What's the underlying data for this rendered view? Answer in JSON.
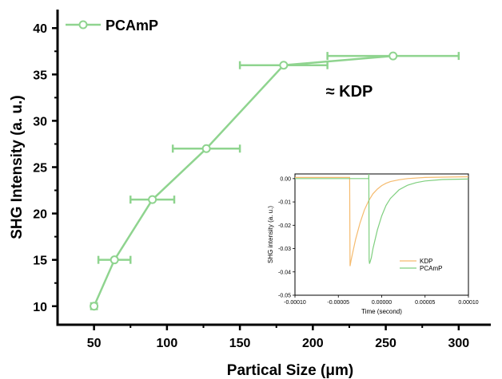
{
  "chart_data": [
    {
      "type": "line",
      "xlabel": "Partical Size (μm)",
      "ylabel": "SHG Intensity (a. u.)",
      "xlim": [
        25,
        322
      ],
      "ylim": [
        8,
        42
      ],
      "xticks": [
        50,
        100,
        150,
        200,
        250,
        300
      ],
      "yticks": [
        10,
        15,
        20,
        25,
        30,
        35,
        40
      ],
      "legend_position": "top-left",
      "series": [
        {
          "name": "PCAmP",
          "color": "#8fd48f",
          "x": [
            50,
            64,
            90,
            127,
            180,
            255
          ],
          "y": [
            10,
            15,
            21.5,
            27,
            36,
            37
          ],
          "x_err_low": [
            2,
            11,
            15,
            23,
            30,
            45
          ],
          "x_err_high": [
            2,
            11,
            15,
            23,
            30,
            45
          ]
        }
      ],
      "annotations": [
        {
          "text": "≈ KDP",
          "x": 225,
          "y": 33.2
        }
      ]
    },
    {
      "type": "line",
      "role": "inset",
      "xlabel": "Time (second)",
      "ylabel": "SHG intensity (a. u.)",
      "xlim": [
        -0.0001,
        0.0001
      ],
      "ylim": [
        -0.05,
        0.002
      ],
      "xticks": [
        -0.0001,
        -5e-05,
        0,
        5e-05,
        0.0001
      ],
      "xtick_labels": [
        "-0.00010",
        "-0.00005",
        "0.00000",
        "0.00005",
        "0.00010"
      ],
      "yticks": [
        0,
        -0.01,
        -0.02,
        -0.03,
        -0.04,
        -0.05
      ],
      "ytick_labels": [
        "0.00",
        "-0.01",
        "-0.02",
        "-0.03",
        "-0.04",
        "-0.05"
      ],
      "legend_position": "lower-right",
      "series": [
        {
          "name": "KDP",
          "color": "#f5bb6f",
          "x": [
            -0.0001,
            -3.7e-05,
            -3.65e-05,
            -3.5e-05,
            -3e-05,
            -2.5e-05,
            -2e-05,
            -1.5e-05,
            -1e-05,
            -5e-06,
            0,
            5e-06,
            1e-05,
            2e-05,
            3e-05,
            5e-05,
            0.0001
          ],
          "y": [
            0.0005,
            0.0005,
            -0.0375,
            -0.0345,
            -0.026,
            -0.019,
            -0.0135,
            -0.0095,
            -0.0065,
            -0.0045,
            -0.003,
            -0.002,
            -0.0013,
            -0.0005,
            0,
            0.0005,
            0.0008
          ]
        },
        {
          "name": "PCAmP",
          "color": "#7fcf7f",
          "x": [
            -0.0001,
            -1.5e-05,
            -1.48e-05,
            -1.45e-05,
            -1.4e-05,
            -1.2e-05,
            -1e-05,
            -5e-06,
            0,
            5e-06,
            1e-05,
            2e-05,
            3e-05,
            4e-05,
            5e-05,
            7e-05,
            0.0001
          ],
          "y": [
            0,
            0,
            0.002,
            -0.035,
            -0.0365,
            -0.034,
            -0.03,
            -0.022,
            -0.016,
            -0.0115,
            -0.0085,
            -0.0048,
            -0.0028,
            -0.0017,
            -0.001,
            -0.0004,
            -0.0002
          ]
        }
      ]
    }
  ]
}
